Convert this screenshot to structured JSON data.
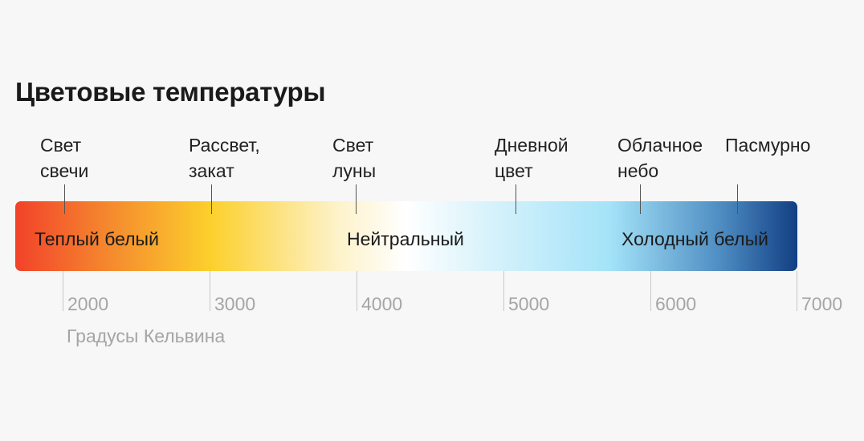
{
  "title": "Цветовые температуры",
  "sources": [
    {
      "line1": "Свет",
      "line2": "свечи"
    },
    {
      "line1": "Рассвет,",
      "line2": "закат"
    },
    {
      "line1": "Свет",
      "line2": "луны"
    },
    {
      "line1": "Дневной",
      "line2": "цвет"
    },
    {
      "line1": "Облачное",
      "line2": "небо"
    },
    {
      "line1": "Пасмурно",
      "line2": ""
    }
  ],
  "bar_labels": {
    "warm": "Теплый белый",
    "neutral": "Нейтральный",
    "cool": "Холодный белый"
  },
  "scale": {
    "ticks": [
      "2000",
      "3000",
      "4000",
      "5000",
      "6000",
      "7000"
    ],
    "unit_label": "Градусы Кельвина"
  },
  "colors": {
    "warm": "#f2422a",
    "amber": "#fcd02c",
    "neutral": "#ffffff",
    "sky": "#a4e3f8",
    "cool": "#123f83"
  }
}
